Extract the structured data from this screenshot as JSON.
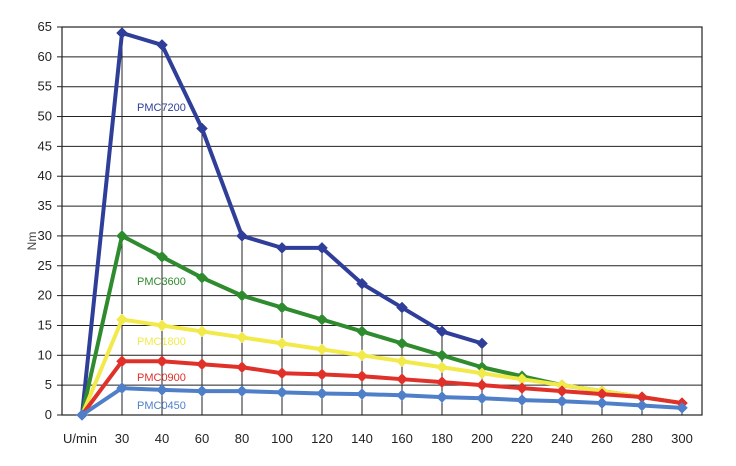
{
  "chart_data": {
    "type": "line",
    "title": "",
    "xlabel": "U/min",
    "ylabel": "Nm",
    "categories": [
      "",
      "30",
      "40",
      "60",
      "80",
      "100",
      "120",
      "140",
      "160",
      "180",
      "200",
      "220",
      "240",
      "260",
      "280",
      "300"
    ],
    "y_ticks": [
      "0",
      "5",
      "10",
      "15",
      "20",
      "25",
      "30",
      "35",
      "40",
      "45",
      "50",
      "55",
      "60",
      "65"
    ],
    "ylim": [
      0,
      65
    ],
    "grid": true,
    "legend": "none (labels placed inside plot)",
    "series": [
      {
        "name": "PMC7200",
        "color": "#2f3f99",
        "values": [
          0,
          64,
          62,
          48,
          30,
          28,
          28,
          22,
          18,
          14,
          12,
          null,
          null,
          null,
          null,
          null
        ]
      },
      {
        "name": "PMC3600",
        "color": "#2e8b2e",
        "values": [
          0,
          30,
          26.5,
          23,
          20,
          18,
          16,
          14,
          12,
          10,
          8,
          6.5,
          5,
          4,
          3,
          2
        ]
      },
      {
        "name": "PMC1800",
        "color": "#f2ea4a",
        "values": [
          0,
          16,
          15,
          14,
          13,
          12,
          11,
          10,
          9,
          8,
          7,
          6,
          5,
          4,
          3,
          2
        ]
      },
      {
        "name": "PMC0900",
        "color": "#e0302a",
        "values": [
          0,
          9,
          9,
          8.5,
          8,
          7,
          6.8,
          6.5,
          6,
          5.5,
          5,
          4.5,
          4,
          3.5,
          3,
          2
        ]
      },
      {
        "name": "PMC0450",
        "color": "#4f7fc8",
        "values": [
          0,
          4.5,
          4.2,
          4,
          4,
          3.8,
          3.6,
          3.5,
          3.3,
          3,
          2.8,
          2.5,
          2.3,
          2,
          1.6,
          1.2
        ]
      }
    ]
  }
}
